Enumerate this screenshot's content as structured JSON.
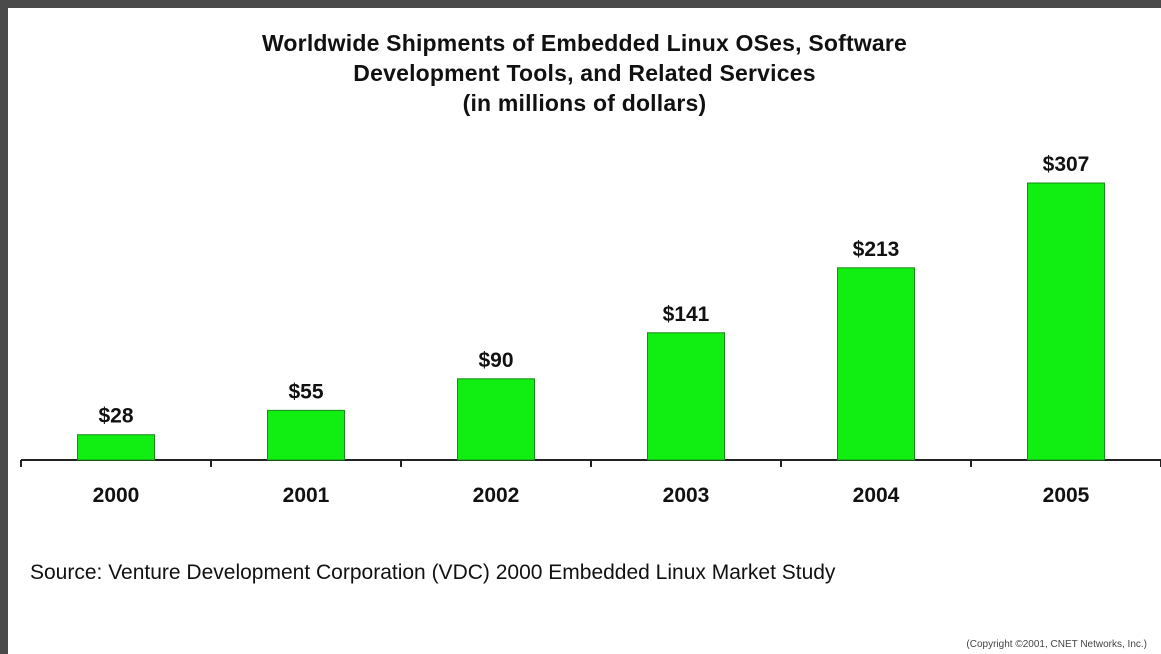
{
  "chart_data": {
    "type": "bar",
    "title_lines": [
      "Worldwide Shipments of Embedded Linux OSes, Software",
      "Development Tools, and Related Services",
      "(in millions of dollars)"
    ],
    "categories": [
      "2000",
      "2001",
      "2002",
      "2003",
      "2004",
      "2005"
    ],
    "values": [
      28,
      55,
      90,
      141,
      213,
      307
    ],
    "data_labels": [
      "$28",
      "$55",
      "$90",
      "$141",
      "$213",
      "$307"
    ],
    "xlabel": "",
    "ylabel": "",
    "ylim": [
      0,
      307
    ],
    "grid": false,
    "legend": "none",
    "bar_color": "#11ee11"
  },
  "source": "Source:  Venture Development Corporation (VDC) 2000 Embedded Linux Market Study",
  "copyright": "(Copyright ©2001, CNET Networks, Inc.)"
}
